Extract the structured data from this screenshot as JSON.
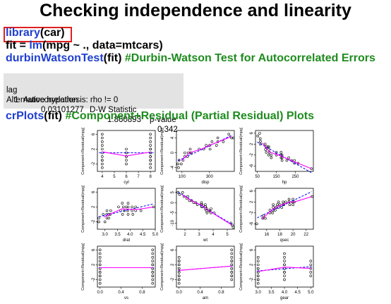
{
  "title": "Checking independence  and linearity",
  "code": {
    "line1": {
      "fn": "library",
      "rest": "(car)"
    },
    "line2": {
      "prefix": "fit = ",
      "fn": "lm",
      "rest": "(mpg ~ ., data=mtcars)"
    },
    "line3": {
      "fn": "durbinWatsonTest",
      "rest": "(fit) ",
      "comment": "#Durbin-Watson Test for Autocorrelated Errors"
    },
    "line4": {
      "fn": "crPlots",
      "rest": "(fit) ",
      "comment": "#Component+Residual (Partial Residual) Plots"
    }
  },
  "output": {
    "headers": [
      "lag",
      "Autocorrelation",
      "D-W Statistic",
      "p-value"
    ],
    "values": [
      "1",
      "0.03101277",
      "1.860893",
      "0.342"
    ],
    "alternative": "Alternative hypothesis: rho != 0"
  },
  "colors": {
    "function": "#1f3fd0",
    "comment": "#1e8c1e",
    "highlight_box": "#e02020",
    "output_bg": "#e3e3e3",
    "fit_line": "#ff00ff",
    "ref_line": "#0000ff"
  },
  "chart_data": [
    {
      "type": "scatter",
      "xlabel": "cyl",
      "ylabel": "Component+Residual(mpg)",
      "xticks": [
        "4",
        "5",
        "6",
        "7",
        "8"
      ],
      "yticks": [
        "-2",
        "2",
        "6"
      ],
      "xlim": [
        3.6,
        8.4
      ],
      "ylim": [
        -4,
        7
      ],
      "x": [
        4,
        4,
        4,
        4,
        4,
        4,
        4,
        4,
        4,
        4,
        4,
        6,
        6,
        6,
        6,
        6,
        6,
        6,
        8,
        8,
        8,
        8,
        8,
        8,
        8,
        8,
        8,
        8,
        8,
        8,
        8,
        8
      ],
      "y": [
        -3,
        -2,
        -1,
        0,
        1,
        2,
        3,
        4,
        5,
        6,
        -1,
        -1,
        0,
        1,
        2,
        0,
        -2,
        1,
        -3,
        -2,
        -1,
        0,
        1,
        2,
        3,
        4,
        5,
        6,
        0,
        1,
        -1,
        2
      ]
    },
    {
      "type": "scatter",
      "xlabel": "disp",
      "ylabel": "Component+Residual(mpg)",
      "xticks": [
        "100",
        "300"
      ],
      "yticks": [
        "-4",
        "0",
        "4"
      ],
      "xlim": [
        60,
        480
      ],
      "ylim": [
        -5,
        6
      ],
      "x": [
        71,
        75,
        79,
        95,
        108,
        120,
        121,
        140,
        146,
        160,
        160,
        167,
        225,
        258,
        276,
        301,
        304,
        318,
        351,
        360,
        360,
        400,
        440,
        460,
        472
      ],
      "y": [
        -3,
        -4,
        -2,
        -3,
        -2,
        -1,
        0,
        -1,
        0,
        0,
        1,
        0,
        1,
        1,
        2,
        2,
        1,
        3,
        2,
        3,
        4,
        3,
        5,
        4,
        4
      ]
    },
    {
      "type": "scatter",
      "xlabel": "hp",
      "ylabel": "Component+Residual(mpg)",
      "xticks": [
        "50",
        "150",
        "250"
      ],
      "yticks": [
        "-6",
        "-2",
        "2",
        "6"
      ],
      "xlim": [
        40,
        345
      ],
      "ylim": [
        -8,
        7
      ],
      "x": [
        52,
        62,
        65,
        66,
        66,
        91,
        93,
        95,
        97,
        105,
        109,
        110,
        110,
        113,
        123,
        123,
        150,
        150,
        175,
        175,
        175,
        180,
        180,
        180,
        205,
        215,
        230,
        245,
        245,
        264,
        335
      ],
      "y": [
        5,
        6,
        4,
        3,
        2,
        2,
        0,
        1,
        -1,
        1,
        -2,
        0,
        1,
        -1,
        -2,
        -3,
        -1,
        -2,
        -2,
        -3,
        -1,
        -3,
        -2,
        -4,
        -4,
        -3,
        -4,
        -5,
        -4,
        -5,
        -7
      ]
    },
    {
      "type": "scatter",
      "xlabel": "drat",
      "ylabel": "Component+Residual(mpg)",
      "xticks": [
        "3.0",
        "3.5",
        "4.0",
        "4.5",
        "5.0"
      ],
      "yticks": [
        "-2",
        "2",
        "6"
      ],
      "xlim": [
        2.7,
        5.0
      ],
      "ylim": [
        -4,
        7
      ],
      "x": [
        2.76,
        2.76,
        2.93,
        3.0,
        3.07,
        3.08,
        3.08,
        3.15,
        3.15,
        3.21,
        3.23,
        3.54,
        3.62,
        3.69,
        3.7,
        3.73,
        3.77,
        3.85,
        3.9,
        3.92,
        3.92,
        3.92,
        4.08,
        4.08,
        4.11,
        4.22,
        4.22,
        4.43,
        4.93
      ],
      "y": [
        -2,
        -1,
        0,
        -2,
        0,
        -1,
        1,
        0,
        -1,
        0,
        1,
        2,
        1,
        3,
        0,
        2,
        1,
        2,
        1,
        0,
        2,
        3,
        1,
        2,
        0,
        1,
        2,
        1,
        2
      ]
    },
    {
      "type": "scatter",
      "xlabel": "wt",
      "ylabel": "Component+Residual(mpg)",
      "xticks": [
        "2",
        "3",
        "4",
        "5"
      ],
      "yticks": [
        "-10",
        "-5",
        "0",
        "5"
      ],
      "xlim": [
        1.4,
        5.5
      ],
      "ylim": [
        -13,
        7
      ],
      "x": [
        1.51,
        1.62,
        1.84,
        1.94,
        2.14,
        2.2,
        2.32,
        2.47,
        2.62,
        2.77,
        2.88,
        3.15,
        3.17,
        3.19,
        3.21,
        3.22,
        3.44,
        3.44,
        3.44,
        3.46,
        3.52,
        3.57,
        3.57,
        3.73,
        3.78,
        3.84,
        3.85,
        4.07,
        5.25,
        5.35,
        5.42
      ],
      "y": [
        5,
        4,
        5,
        3,
        2,
        3,
        1,
        1,
        0,
        0,
        -1,
        -1,
        0,
        -2,
        -1,
        -2,
        -3,
        -2,
        -1,
        -2,
        -4,
        -3,
        -5,
        -4,
        -4,
        -5,
        -3,
        -5,
        -10,
        -11,
        -12
      ]
    },
    {
      "type": "scatter",
      "xlabel": "qsec",
      "ylabel": "Component+Residual(mpg)",
      "xticks": [
        "16",
        "18",
        "20",
        "22"
      ],
      "yticks": [
        "-6",
        "-2",
        "2",
        "6"
      ],
      "xlim": [
        14.3,
        23.1
      ],
      "ylim": [
        -8,
        7
      ],
      "x": [
        14.5,
        15.4,
        15.5,
        15.8,
        16.5,
        16.5,
        16.9,
        17.0,
        17.0,
        17.0,
        17.3,
        17.4,
        17.6,
        17.8,
        17.8,
        18.0,
        18.3,
        18.5,
        18.5,
        18.6,
        18.9,
        19.4,
        19.4,
        19.5,
        19.9,
        20.0,
        20.0,
        20.2,
        22.9
      ],
      "y": [
        -6,
        -4,
        -3,
        -4,
        -2,
        -1,
        -2,
        -1,
        0,
        1,
        -1,
        0,
        1,
        0,
        2,
        1,
        0,
        1,
        2,
        1,
        2,
        2,
        3,
        1,
        2,
        3,
        1,
        2,
        4
      ]
    },
    {
      "type": "scatter",
      "xlabel": "vs",
      "ylabel": "Component+Residual(mpg)",
      "xticks": [
        "0.0",
        "0.4",
        "0.8"
      ],
      "yticks": [
        "-2",
        "2",
        "6"
      ],
      "xlim": [
        -0.05,
        1.05
      ],
      "ylim": [
        -4,
        7
      ],
      "x": [
        0,
        0,
        0,
        0,
        0,
        0,
        0,
        0,
        0,
        0,
        0,
        0,
        0,
        0,
        1,
        1,
        1,
        1,
        1,
        1,
        1,
        1,
        1,
        1,
        1,
        1,
        1,
        1
      ],
      "y": [
        -3,
        -2,
        -1,
        0,
        1,
        2,
        3,
        4,
        5,
        6,
        0,
        -1,
        1,
        2,
        -3,
        -2,
        -1,
        0,
        1,
        2,
        3,
        4,
        5,
        6,
        0,
        1,
        -1,
        2
      ]
    },
    {
      "type": "scatter",
      "xlabel": "am",
      "ylabel": "Component+Residual(mpg)",
      "xticks": [
        "0.0",
        "0.4",
        "0.8"
      ],
      "yticks": [
        "-2",
        "2",
        "6"
      ],
      "xlim": [
        -0.05,
        1.05
      ],
      "ylim": [
        -4,
        7
      ],
      "x": [
        0,
        0,
        0,
        0,
        0,
        0,
        0,
        0,
        0,
        0,
        0,
        0,
        0,
        0,
        1,
        1,
        1,
        1,
        1,
        1,
        1,
        1,
        1,
        1,
        1,
        1,
        1,
        1
      ],
      "y": [
        -3,
        -2,
        -1,
        0,
        1,
        2,
        3,
        4,
        0,
        -1,
        1,
        2,
        -2,
        3,
        -2,
        -1,
        0,
        1,
        2,
        3,
        4,
        5,
        6,
        0,
        1,
        -1,
        2,
        3
      ]
    },
    {
      "type": "scatter",
      "xlabel": "gear",
      "ylabel": "Component+Residual(mpg)",
      "xticks": [
        "3.0",
        "3.5",
        "4.0",
        "4.5",
        "5.0"
      ],
      "yticks": [
        "-2",
        "2",
        "6"
      ],
      "xlim": [
        2.9,
        5.1
      ],
      "ylim": [
        -4,
        7
      ],
      "x": [
        3,
        3,
        3,
        3,
        3,
        3,
        3,
        3,
        3,
        3,
        3,
        3,
        4,
        4,
        4,
        4,
        4,
        4,
        4,
        4,
        4,
        4,
        4,
        5,
        5,
        5,
        5,
        5
      ],
      "y": [
        -3,
        -2,
        -1,
        0,
        1,
        2,
        3,
        4,
        0,
        -1,
        1,
        -2,
        -2,
        -1,
        0,
        1,
        2,
        3,
        4,
        5,
        0,
        1,
        2,
        -1,
        0,
        1,
        2,
        3
      ]
    }
  ]
}
